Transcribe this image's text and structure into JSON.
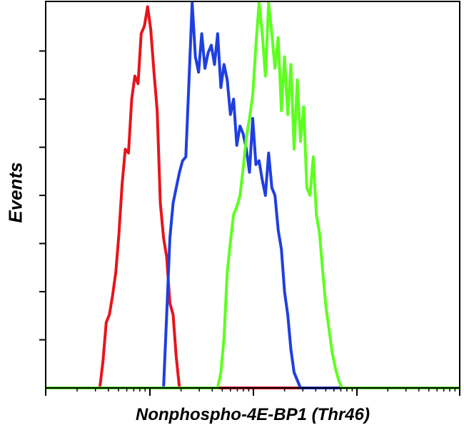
{
  "chart_data": {
    "type": "line",
    "title": "",
    "xlabel": "Nonphospho-4E-BP1 (Thr46)",
    "ylabel": "Events",
    "xlim": [
      0,
      130
    ],
    "ylim": [
      0,
      100
    ],
    "log_x": false,
    "grid": false,
    "legend": "none",
    "series": [
      {
        "color": "#e8141c",
        "x": [
          0,
          17,
          18,
          19,
          20,
          21,
          22,
          23,
          24,
          25,
          26,
          27,
          28,
          29,
          30,
          31,
          32,
          33,
          34,
          35,
          36,
          37,
          38,
          39,
          40,
          41,
          42,
          130
        ],
        "y": [
          0,
          0,
          7,
          17,
          19,
          24,
          30,
          40,
          53,
          62,
          61,
          75,
          81,
          79,
          92,
          94,
          99,
          93,
          82,
          72,
          48,
          39,
          34,
          22,
          19,
          8,
          0,
          0
        ]
      },
      {
        "color": "#1f3fe0",
        "x": [
          0,
          37,
          38,
          39,
          40,
          41,
          42,
          43,
          44,
          45,
          46,
          47,
          48,
          49,
          50,
          51,
          52,
          53,
          54,
          55,
          56,
          57,
          58,
          59,
          60,
          61,
          62,
          63,
          64,
          65,
          66,
          67,
          68,
          69,
          70,
          71,
          72,
          73,
          74,
          75,
          76,
          77,
          78,
          79,
          80,
          81,
          130
        ],
        "y": [
          0,
          0,
          19,
          39,
          48,
          52,
          56,
          59,
          60,
          80,
          100,
          86,
          82,
          92,
          83,
          87,
          89,
          84,
          92,
          78,
          84,
          80,
          71,
          75,
          63,
          68,
          66,
          62,
          56,
          70,
          58,
          59,
          54,
          50,
          61,
          52,
          50,
          41,
          36,
          25,
          19,
          10,
          4,
          2,
          0,
          0,
          0
        ]
      },
      {
        "color": "#5dff1f",
        "x": [
          0,
          54,
          55,
          56,
          57,
          58,
          59,
          60,
          61,
          62,
          63,
          64,
          65,
          66,
          67,
          68,
          69,
          70,
          71,
          72,
          73,
          74,
          75,
          76,
          77,
          78,
          79,
          80,
          81,
          82,
          83,
          84,
          85,
          86,
          87,
          88,
          89,
          90,
          91,
          92,
          93,
          94,
          130
        ],
        "y": [
          0,
          0,
          4,
          13,
          30,
          38,
          45,
          47,
          50,
          57,
          65,
          70,
          76,
          89,
          100,
          92,
          81,
          100,
          92,
          83,
          91,
          72,
          86,
          71,
          84,
          62,
          80,
          64,
          73,
          52,
          50,
          60,
          45,
          40,
          30,
          21,
          15,
          9,
          5,
          2,
          0,
          0,
          0
        ]
      }
    ]
  }
}
